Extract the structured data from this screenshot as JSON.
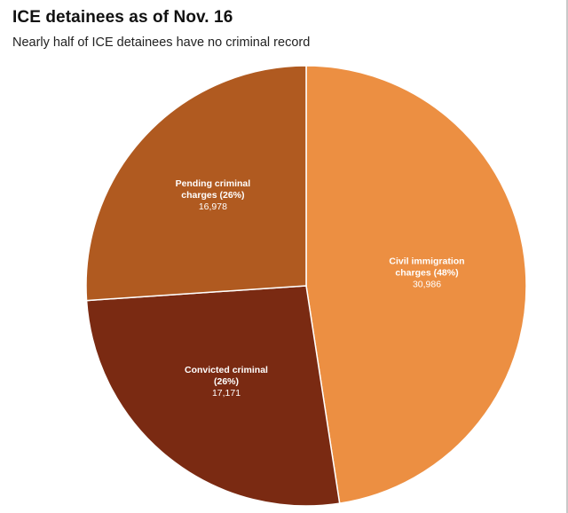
{
  "chart_data": {
    "type": "pie",
    "title": "ICE detainees as of Nov. 16",
    "subtitle": "Nearly half of ICE detainees have no criminal record",
    "slices": [
      {
        "name": "Civil immigration charges",
        "percent_label": "(48%)",
        "value": 30986,
        "value_label": "30,986",
        "color": "#ec8f42",
        "label_lines": [
          "Civil immigration",
          "charges (48%)"
        ]
      },
      {
        "name": "Convicted criminal",
        "percent_label": "(26%)",
        "value": 17171,
        "value_label": "17,171",
        "color": "#7a2a12",
        "label_lines": [
          "Convicted criminal",
          "(26%)"
        ]
      },
      {
        "name": "Pending criminal charges",
        "percent_label": "(26%)",
        "value": 16978,
        "value_label": "16,978",
        "color": "#b05a20",
        "label_lines": [
          "Pending criminal",
          "charges (26%)"
        ]
      }
    ],
    "start": "12 o'clock",
    "direction": "clockwise",
    "slice_border_color": "#ffffff"
  }
}
